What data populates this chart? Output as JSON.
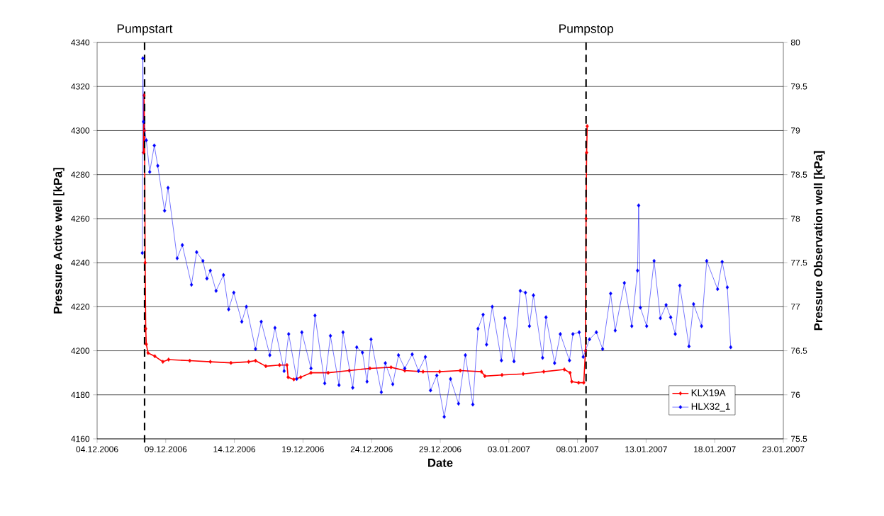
{
  "chart_data": {
    "type": "line",
    "xlabel": "Date",
    "ylabel": "Pressure Active well [kPa]",
    "y2label": "Pressure Observation well [kPa]",
    "xlim": [
      "2006-12-04",
      "2007-01-23"
    ],
    "xticks": [
      {
        "value": "2006-12-04",
        "label": "04.12.2006"
      },
      {
        "value": "2006-12-09",
        "label": "09.12.2006"
      },
      {
        "value": "2006-12-14",
        "label": "14.12.2006"
      },
      {
        "value": "2006-12-19",
        "label": "19.12.2006"
      },
      {
        "value": "2006-12-24",
        "label": "24.12.2006"
      },
      {
        "value": "2006-12-29",
        "label": "29.12.2006"
      },
      {
        "value": "2007-01-03",
        "label": "03.01.2007"
      },
      {
        "value": "2007-01-08",
        "label": "08.01.2007"
      },
      {
        "value": "2007-01-13",
        "label": "13.01.2007"
      },
      {
        "value": "2007-01-18",
        "label": "18.01.2007"
      },
      {
        "value": "2007-01-23",
        "label": "23.01.2007"
      }
    ],
    "ylim": [
      4160,
      4340
    ],
    "yticks": [
      4160,
      4180,
      4200,
      4220,
      4240,
      4260,
      4280,
      4300,
      4320,
      4340
    ],
    "y2lim": [
      75.5,
      80
    ],
    "y2ticks": [
      75.5,
      76,
      76.5,
      77,
      77.5,
      78,
      78.5,
      79,
      79.5,
      80
    ],
    "grid": "y",
    "legend": "bottom right",
    "marker": "diamond",
    "line_style": "solid",
    "ref_lines": [
      {
        "axis": "x",
        "value": "2006-12-07T11:00",
        "label": "Pumpstart",
        "color": "#000000",
        "line_style": "dashed"
      },
      {
        "axis": "x",
        "value": "2007-01-08T15:00",
        "label": "Pumpstop",
        "color": "#000000",
        "line_style": "dashed"
      }
    ],
    "series": [
      {
        "name": "KLX19A",
        "color": "#ff0000",
        "x": [
          "2006-12-07T09:00",
          "2006-12-07T10:00",
          "2006-12-07T11:00",
          "2006-12-07T12:00",
          "2006-12-07T13:00",
          "2006-12-07T14:00",
          "2006-12-07T17:00",
          "2006-12-08T05:00",
          "2006-12-08T19:00",
          "2006-12-09T05:00",
          "2006-12-10T18:00",
          "2006-12-12T06:00",
          "2006-12-13T18:00",
          "2006-12-15T01:00",
          "2006-12-15T13:00",
          "2006-12-16T07:00",
          "2006-12-17T07:00",
          "2006-12-17T20:00",
          "2006-12-17T22:00",
          "2006-12-18T08:00",
          "2006-12-18T20:00",
          "2006-12-19T14:00",
          "2006-12-20T20:00",
          "2006-12-22T09:00",
          "2006-12-23T21:00",
          "2006-12-25T10:00",
          "2006-12-26T10:00",
          "2006-12-27T18:00",
          "2006-12-28T23:00",
          "2006-12-30T11:00",
          "2007-01-01T00:00",
          "2007-01-01T06:00",
          "2007-01-02T12:00",
          "2007-01-04T01:00",
          "2007-01-05T13:00",
          "2007-01-07T01:00",
          "2007-01-07T11:00",
          "2007-01-07T14:00",
          "2007-01-08T02:00",
          "2007-01-08T11:00",
          "2007-01-08T14:00",
          "2007-01-08T15:00",
          "2007-01-08T16:00",
          "2007-01-08T17:00"
        ],
        "values": [
          4290,
          4316,
          4300,
          4240,
          4210,
          4203,
          4199,
          4197.5,
          4195,
          4196,
          4195.5,
          4195,
          4194.5,
          4195,
          4195.5,
          4193,
          4193.5,
          4193.5,
          4188,
          4187,
          4188,
          4190,
          4190,
          4191,
          4192,
          4192.5,
          4191,
          4190.5,
          4190.5,
          4191,
          4190.5,
          4188.5,
          4189,
          4189.5,
          4190.5,
          4191.5,
          4190,
          4186,
          4185.5,
          4185.5,
          4200,
          4260,
          4290,
          4302
        ]
      },
      {
        "name": "HLX32_1",
        "color": "#0000ff",
        "axis": "y2",
        "x": [
          "2006-12-07T07:00",
          "2006-12-07T08:00",
          "2006-12-07T09:00",
          "2006-12-07T14:00",
          "2006-12-07T20:00",
          "2006-12-08T04:00",
          "2006-12-08T10:00",
          "2006-12-08T22:00",
          "2006-12-09T04:00",
          "2006-12-09T20:00",
          "2006-12-10T05:00",
          "2006-12-10T21:00",
          "2006-12-11T06:00",
          "2006-12-11T17:00",
          "2006-12-12T00:00",
          "2006-12-12T06:00",
          "2006-12-12T16:00",
          "2006-12-13T05:00",
          "2006-12-13T14:00",
          "2006-12-13T23:00",
          "2006-12-14T13:00",
          "2006-12-14T21:00",
          "2006-12-15T13:00",
          "2006-12-15T23:00",
          "2006-12-16T14:00",
          "2006-12-16T23:00",
          "2006-12-17T15:00",
          "2006-12-17T23:00",
          "2006-12-18T13:00",
          "2006-12-18T22:00",
          "2006-12-19T14:00",
          "2006-12-19T21:00",
          "2006-12-20T14:00",
          "2006-12-21T00:00",
          "2006-12-21T15:00",
          "2006-12-21T22:00",
          "2006-12-22T15:00",
          "2006-12-22T22:00",
          "2006-12-23T08:00",
          "2006-12-23T16:00",
          "2006-12-23T23:00",
          "2006-12-24T17:00",
          "2006-12-25T00:00",
          "2006-12-25T13:00",
          "2006-12-25T23:00",
          "2006-12-26T10:00",
          "2006-12-26T23:00",
          "2006-12-27T10:00",
          "2006-12-27T22:00",
          "2006-12-28T07:00",
          "2006-12-28T18:00",
          "2006-12-29T07:00",
          "2006-12-29T18:00",
          "2006-12-30T08:00",
          "2006-12-30T20:00",
          "2006-12-31T09:00",
          "2006-12-31T18:00",
          "2007-01-01T03:00",
          "2007-01-01T09:00",
          "2007-01-01T19:00",
          "2007-01-02T11:00",
          "2007-01-02T17:00",
          "2007-01-03T09:00",
          "2007-01-03T20:00",
          "2007-01-04T05:00",
          "2007-01-04T12:00",
          "2007-01-04T19:00",
          "2007-01-05T11:00",
          "2007-01-05T17:00",
          "2007-01-06T08:00",
          "2007-01-06T18:00",
          "2007-01-07T10:00",
          "2007-01-07T16:00",
          "2007-01-08T03:00",
          "2007-01-08T10:00",
          "2007-01-08T21:00",
          "2007-01-09T09:00",
          "2007-01-09T20:00",
          "2007-01-10T10:00",
          "2007-01-10T18:00",
          "2007-01-11T10:00",
          "2007-01-11T23:00",
          "2007-01-12T09:00",
          "2007-01-12T11:00",
          "2007-01-12T14:00",
          "2007-01-13T01:00",
          "2007-01-13T14:00",
          "2007-01-14T01:00",
          "2007-01-14T11:00",
          "2007-01-14T19:00",
          "2007-01-15T03:00",
          "2007-01-15T11:00",
          "2007-01-16T03:00",
          "2007-01-16T11:00",
          "2007-01-17T01:00",
          "2007-01-17T10:00",
          "2007-01-18T05:00",
          "2007-01-18T13:00",
          "2007-01-18T22:00",
          "2007-01-19T04:00"
        ],
        "values": [
          77.61,
          79.82,
          79.1,
          78.89,
          78.53,
          78.83,
          78.6,
          78.09,
          78.35,
          77.55,
          77.7,
          77.25,
          77.62,
          77.52,
          77.32,
          77.41,
          77.18,
          77.36,
          76.97,
          77.16,
          76.83,
          77.0,
          76.52,
          76.83,
          76.45,
          76.76,
          76.27,
          76.69,
          76.18,
          76.71,
          76.3,
          76.9,
          76.13,
          76.67,
          76.11,
          76.71,
          76.08,
          76.54,
          76.48,
          76.15,
          76.63,
          76.03,
          76.36,
          76.12,
          76.45,
          76.3,
          76.46,
          76.27,
          76.43,
          76.05,
          76.22,
          75.75,
          76.18,
          75.9,
          76.45,
          75.89,
          76.75,
          76.91,
          76.57,
          77.0,
          76.39,
          76.87,
          76.38,
          77.18,
          77.16,
          76.78,
          77.13,
          76.42,
          76.88,
          76.36,
          76.69,
          76.39,
          76.69,
          76.71,
          76.43,
          76.63,
          76.71,
          76.52,
          77.15,
          76.73,
          77.27,
          76.78,
          77.41,
          78.15,
          76.99,
          76.78,
          77.52,
          76.87,
          77.02,
          76.88,
          76.69,
          77.24,
          76.55,
          77.03,
          76.78,
          77.52,
          77.2,
          77.51,
          77.22,
          76.54
        ]
      }
    ]
  }
}
